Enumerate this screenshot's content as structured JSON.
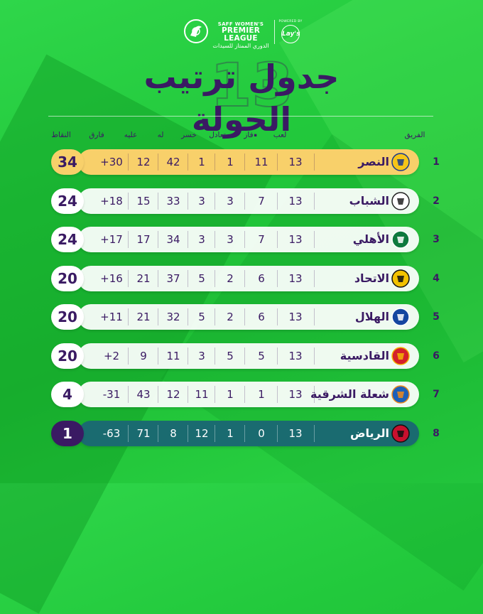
{
  "league": {
    "brand_line": "SAFF WOMEN'S",
    "name_en": "PREMIER LEAGUE",
    "name_ar": "الدوري الممتاز للسيدات",
    "powered_by": "POWERED BY",
    "sponsor": "Lay's"
  },
  "title": "جدول ترتيب الجولة",
  "round": "13",
  "headers": {
    "team": "الفريق",
    "played": "لعب",
    "won": "فاز",
    "drawn": "تعادل",
    "lost": "خسر",
    "for": "له",
    "against": "عليه",
    "diff": "فارق",
    "points": "النقاط"
  },
  "rows": [
    {
      "rank": "1",
      "team": "النصر",
      "played": "13",
      "won": "11",
      "drawn": "1",
      "lost": "1",
      "for": "42",
      "against": "12",
      "diff": "+30",
      "points": "34",
      "logo_color": "#f5c518",
      "logo_accent": "#1a3a8c"
    },
    {
      "rank": "2",
      "team": "الشباب",
      "played": "13",
      "won": "7",
      "drawn": "3",
      "lost": "3",
      "for": "33",
      "against": "15",
      "diff": "+18",
      "points": "24",
      "logo_color": "#ffffff",
      "logo_accent": "#222222"
    },
    {
      "rank": "3",
      "team": "الأهلي",
      "played": "13",
      "won": "7",
      "drawn": "3",
      "lost": "3",
      "for": "34",
      "against": "17",
      "diff": "+17",
      "points": "24",
      "logo_color": "#0e7a3e",
      "logo_accent": "#ffffff"
    },
    {
      "rank": "4",
      "team": "الاتحاد",
      "played": "13",
      "won": "6",
      "drawn": "2",
      "lost": "5",
      "for": "37",
      "against": "21",
      "diff": "+16",
      "points": "20",
      "logo_color": "#f2c200",
      "logo_accent": "#111111"
    },
    {
      "rank": "5",
      "team": "الهلال",
      "played": "13",
      "won": "6",
      "drawn": "2",
      "lost": "5",
      "for": "32",
      "against": "21",
      "diff": "+11",
      "points": "20",
      "logo_color": "#1446a0",
      "logo_accent": "#ffffff"
    },
    {
      "rank": "6",
      "team": "القادسية",
      "played": "13",
      "won": "5",
      "drawn": "5",
      "lost": "3",
      "for": "11",
      "against": "9",
      "diff": "+2",
      "points": "20",
      "logo_color": "#d4202a",
      "logo_accent": "#f2b705"
    },
    {
      "rank": "7",
      "team": "شعلة الشرقية",
      "played": "13",
      "won": "1",
      "drawn": "1",
      "lost": "11",
      "for": "12",
      "against": "43",
      "diff": "-31",
      "points": "4",
      "logo_color": "#1d5fb8",
      "logo_accent": "#f08a1c"
    },
    {
      "rank": "8",
      "team": "الرياض",
      "played": "13",
      "won": "0",
      "drawn": "1",
      "lost": "12",
      "for": "8",
      "against": "71",
      "diff": "-63",
      "points": "1",
      "logo_color": "#c8102e",
      "logo_accent": "#111111"
    }
  ]
}
